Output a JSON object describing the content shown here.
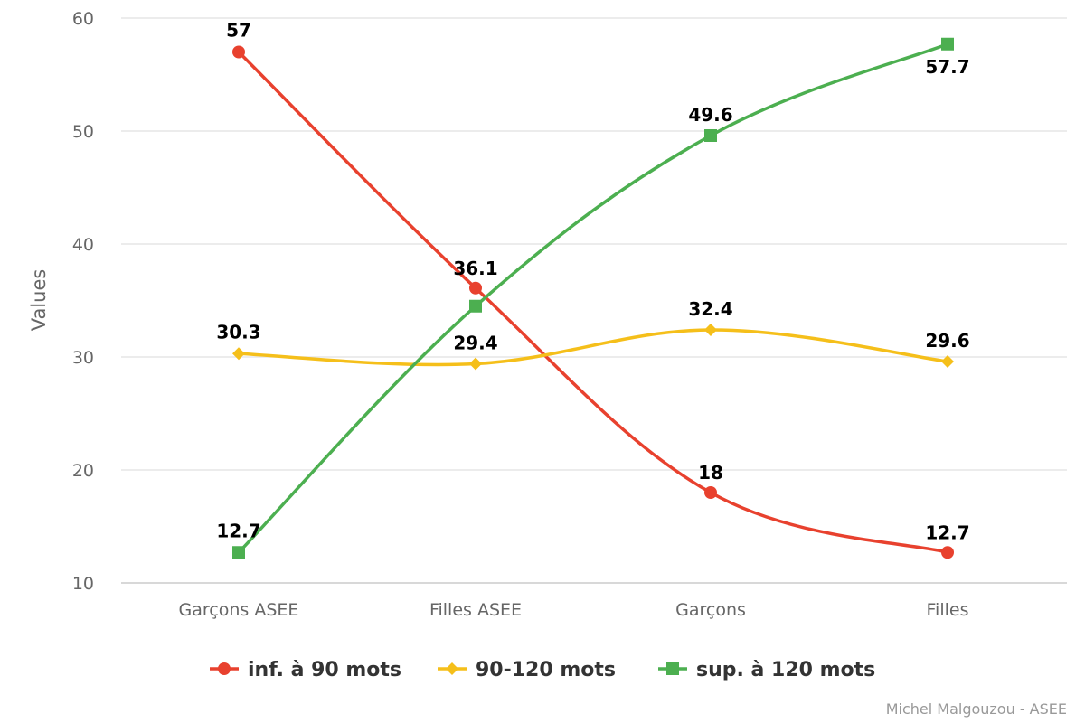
{
  "chart_data": {
    "type": "line",
    "categories": [
      "Garçons ASEE",
      "Filles ASEE",
      "Garçons",
      "Filles"
    ],
    "series": [
      {
        "name": "inf. à 90 mots",
        "values": [
          57,
          36.1,
          18,
          12.7
        ],
        "color": "#e8412e",
        "marker": "circle"
      },
      {
        "name": "90-120 mots",
        "values": [
          30.3,
          29.4,
          32.4,
          29.6
        ],
        "color": "#f5bf1a",
        "marker": "diamond"
      },
      {
        "name": "sup. à 120 mots",
        "values": [
          12.7,
          34.5,
          49.6,
          57.7
        ],
        "color": "#4caf50",
        "marker": "square"
      }
    ],
    "data_labels": [
      [
        "57",
        "36.1",
        "18",
        "12.7"
      ],
      [
        "30.3",
        "29.4",
        "32.4",
        "29.6"
      ],
      [
        "12.7",
        "",
        "49.6",
        "57.7"
      ]
    ],
    "ylabel": "Values",
    "ylim": [
      10,
      60
    ],
    "yticks": [
      10,
      20,
      30,
      40,
      50,
      60
    ],
    "grid": true,
    "legend": "bottom",
    "credit": "Michel Malgouzou - ASEE"
  }
}
